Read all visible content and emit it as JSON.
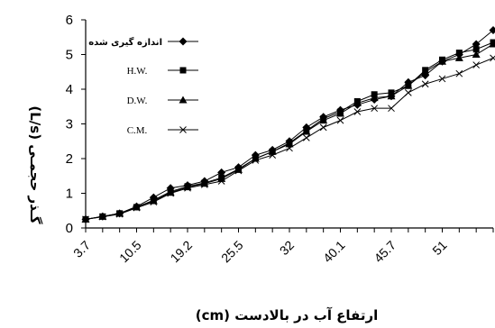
{
  "chart_data": {
    "type": "line",
    "title": "",
    "xlabel": "ارتفاع آب در بالادست (cm)",
    "ylabel": "گـذر حجمـی (L/s)",
    "ylim": [
      0,
      6
    ],
    "yticks": [
      "0",
      "1",
      "2",
      "3",
      "4",
      "5",
      "6"
    ],
    "x_tick_labels": [
      "3.7",
      "10.5",
      "19.2",
      "25.5",
      "32",
      "40.1",
      "45.7",
      "51"
    ],
    "x_tick_every": 3,
    "legend_position": "top-left",
    "x": [
      3.7,
      5.1,
      7.2,
      10.5,
      12.8,
      16.0,
      19.2,
      21.0,
      23.1,
      25.5,
      27.4,
      29.6,
      32.0,
      34.5,
      37.2,
      40.1,
      42.0,
      43.9,
      45.7,
      47.5,
      49.4,
      51.0,
      53.0,
      55.0,
      57.0
    ],
    "series": [
      {
        "name": "اندازه گیری شده",
        "marker": "diamond",
        "values": [
          0.25,
          0.33,
          0.42,
          0.62,
          0.88,
          1.15,
          1.23,
          1.35,
          1.6,
          1.75,
          2.1,
          2.25,
          2.5,
          2.9,
          3.2,
          3.4,
          3.55,
          3.7,
          3.8,
          4.2,
          4.4,
          4.8,
          5.0,
          5.3,
          5.7
        ]
      },
      {
        "name": "H.W.",
        "marker": "square",
        "values": [
          0.25,
          0.33,
          0.42,
          0.6,
          0.8,
          1.05,
          1.2,
          1.3,
          1.45,
          1.7,
          2.0,
          2.2,
          2.45,
          2.8,
          3.15,
          3.35,
          3.65,
          3.85,
          3.9,
          4.1,
          4.55,
          4.85,
          5.05,
          5.15,
          5.35
        ]
      },
      {
        "name": "D.W.",
        "marker": "triangle",
        "values": [
          0.25,
          0.33,
          0.42,
          0.6,
          0.78,
          1.02,
          1.18,
          1.28,
          1.42,
          1.68,
          2.0,
          2.2,
          2.42,
          2.78,
          3.1,
          3.3,
          3.6,
          3.75,
          3.8,
          4.1,
          4.5,
          4.8,
          4.9,
          5.0,
          5.3
        ]
      },
      {
        "name": "C.M.",
        "marker": "x",
        "values": [
          0.25,
          0.32,
          0.4,
          0.58,
          0.75,
          1.0,
          1.15,
          1.25,
          1.35,
          1.65,
          1.95,
          2.1,
          2.3,
          2.6,
          2.9,
          3.1,
          3.35,
          3.45,
          3.45,
          3.9,
          4.15,
          4.3,
          4.45,
          4.7,
          4.9
        ]
      }
    ]
  }
}
